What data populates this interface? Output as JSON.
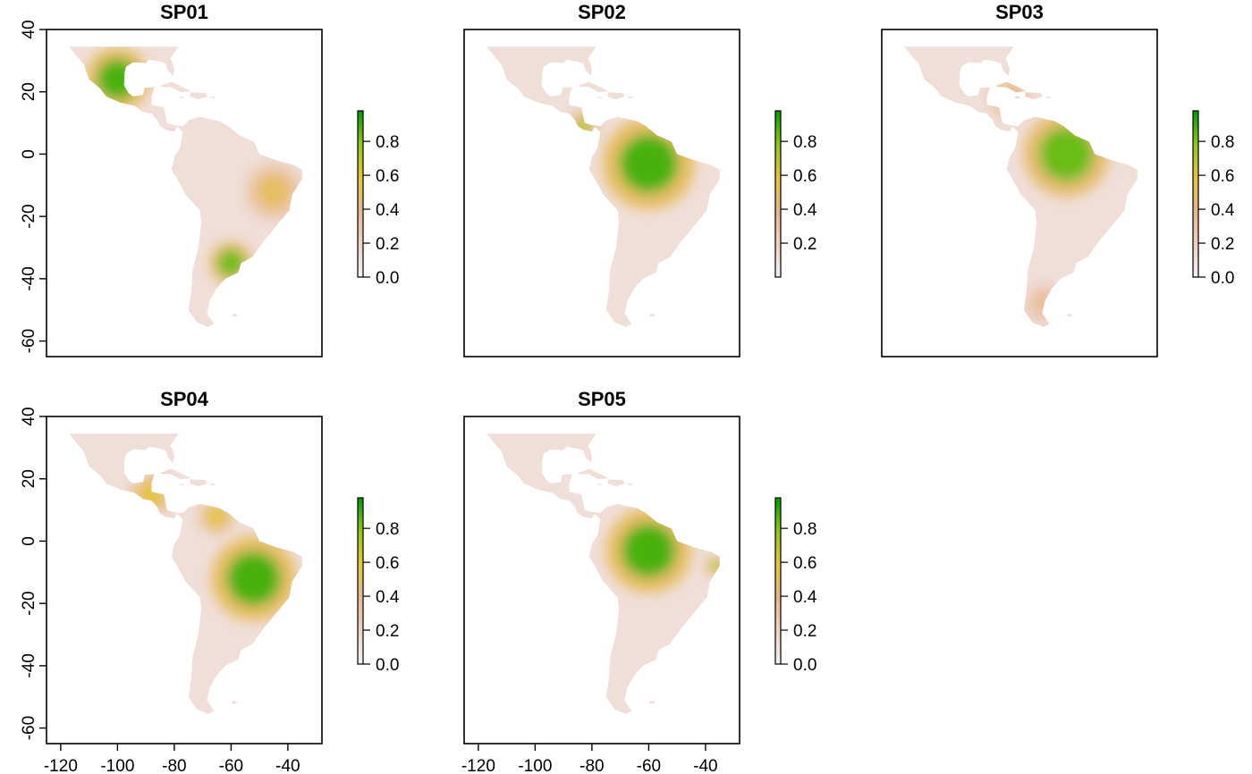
{
  "panels": [
    {
      "title": "SP01",
      "show_y_axis": true,
      "show_x_axis": false,
      "legend": {
        "ticks": [
          "0.0",
          "0.2",
          "0.4",
          "0.6",
          "0.8"
        ]
      },
      "hotspots": [
        {
          "lon": -100,
          "lat": 24,
          "radius_deg": 9,
          "value": 0.9
        },
        {
          "lon": -60,
          "lat": -35,
          "radius_deg": 6,
          "value": 0.85
        },
        {
          "lon": -45,
          "lat": -12,
          "radius_deg": 8,
          "value": 0.5
        }
      ]
    },
    {
      "title": "SP02",
      "show_y_axis": false,
      "show_x_axis": false,
      "legend": {
        "ticks": [
          "0.2",
          "0.4",
          "0.6",
          "0.8"
        ]
      },
      "hotspots": [
        {
          "lon": -60,
          "lat": -3,
          "radius_deg": 13,
          "value": 0.9
        },
        {
          "lon": -83,
          "lat": 9,
          "radius_deg": 4,
          "value": 0.7
        }
      ]
    },
    {
      "title": "SP03",
      "show_y_axis": false,
      "show_x_axis": false,
      "legend": {
        "ticks": [
          "0.0",
          "0.2",
          "0.4",
          "0.6",
          "0.8"
        ]
      },
      "hotspots": [
        {
          "lon": -60,
          "lat": 0,
          "radius_deg": 12,
          "value": 0.85
        },
        {
          "lon": -80,
          "lat": 18,
          "radius_deg": 6,
          "value": 0.45
        },
        {
          "lon": -68,
          "lat": -48,
          "radius_deg": 6,
          "value": 0.35
        }
      ]
    },
    {
      "title": "SP04",
      "show_y_axis": true,
      "show_x_axis": true,
      "legend": {
        "ticks": [
          "0.0",
          "0.2",
          "0.4",
          "0.6",
          "0.8"
        ]
      },
      "hotspots": [
        {
          "lon": -52,
          "lat": -12,
          "radius_deg": 12,
          "value": 0.9
        },
        {
          "lon": -88,
          "lat": 15,
          "radius_deg": 6,
          "value": 0.6
        },
        {
          "lon": -65,
          "lat": 8,
          "radius_deg": 5,
          "value": 0.6
        }
      ]
    },
    {
      "title": "SP05",
      "show_y_axis": false,
      "show_x_axis": true,
      "legend": {
        "ticks": [
          "0.0",
          "0.2",
          "0.4",
          "0.6",
          "0.8"
        ]
      },
      "hotspots": [
        {
          "lon": -60,
          "lat": -3,
          "radius_deg": 12,
          "value": 0.9
        },
        {
          "lon": -36,
          "lat": -8,
          "radius_deg": 3,
          "value": 0.7
        }
      ]
    }
  ],
  "axes": {
    "lon_range": [
      -125,
      -28
    ],
    "lat_range": [
      -65,
      40
    ],
    "y_ticks": [
      "-60",
      "-40",
      "-20",
      "0",
      "20",
      "40"
    ],
    "x_ticks": [
      "-120",
      "-100",
      "-80",
      "-60",
      "-40"
    ]
  },
  "colorscale": [
    "#f2f2f2",
    "#eed1c6",
    "#e7b78b",
    "#e6c53a",
    "#8fc71a",
    "#009a00"
  ]
}
